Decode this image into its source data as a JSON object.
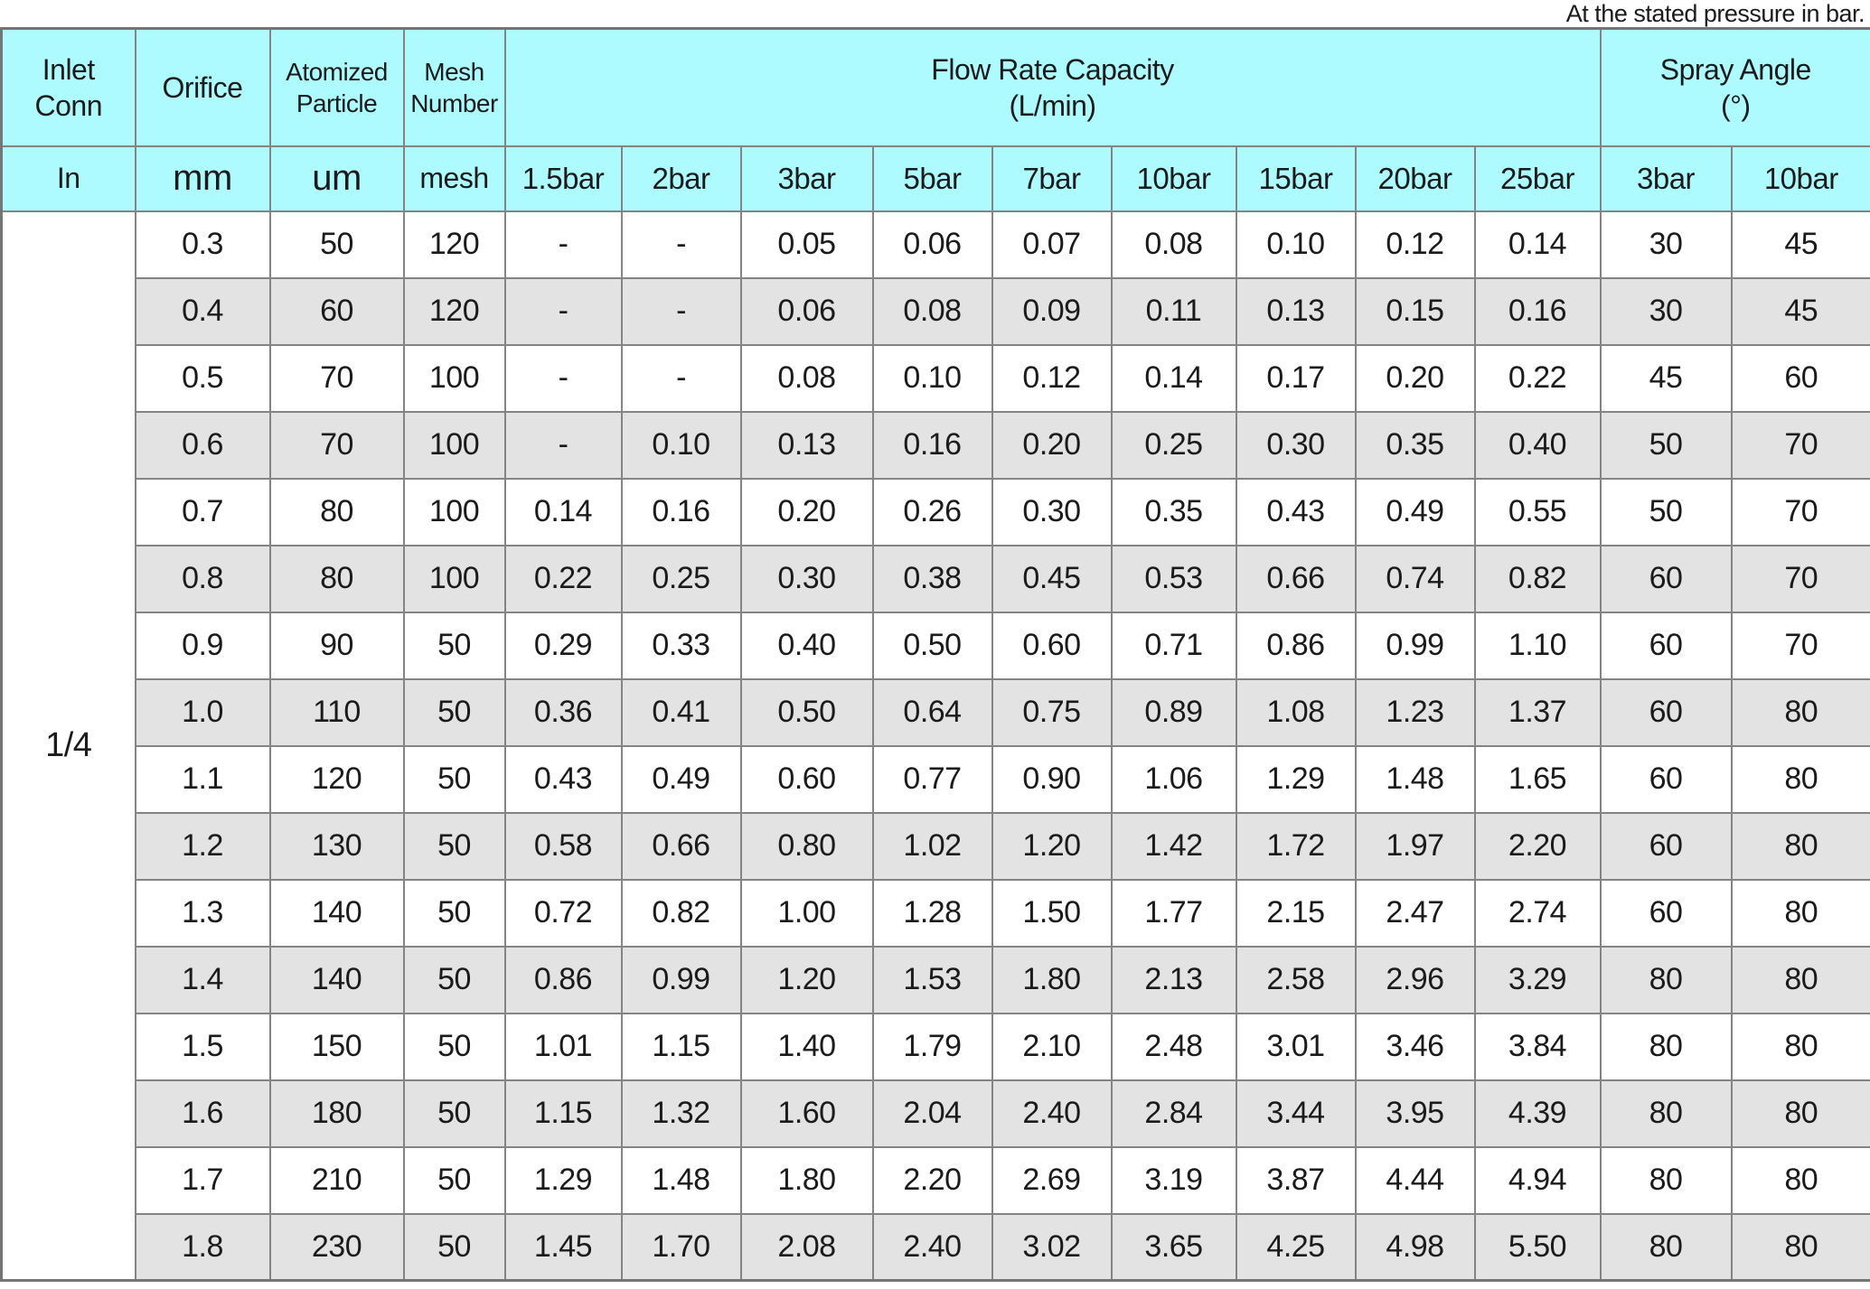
{
  "annotation": "At the stated pressure in bar.",
  "colors": {
    "header_bg": "#aefbff",
    "row_alt_bg": "#e3e3e3",
    "row_bg": "#ffffff",
    "border": "#848484",
    "text": "#1b1b1b"
  },
  "table": {
    "header_groups": {
      "inlet_conn": "Inlet\nConn",
      "orifice": "Orifice",
      "atomized_particle": "Atomized\nParticle",
      "mesh_number": "Mesh\nNumber",
      "flow_rate": "Flow Rate Capacity\n(L/min)",
      "spray_angle": "Spray Angle\n(°)"
    },
    "units": [
      "In",
      "mm",
      "um",
      "mesh",
      "1.5bar",
      "2bar",
      "3bar",
      "5bar",
      "7bar",
      "10bar",
      "15bar",
      "20bar",
      "25bar",
      "3bar",
      "10bar"
    ],
    "inlet_conn_value": "1/4",
    "rows": [
      {
        "orifice": "0.3",
        "particle": "50",
        "mesh": "120",
        "flow": [
          "-",
          "-",
          "0.05",
          "0.06",
          "0.07",
          "0.08",
          "0.10",
          "0.12",
          "0.14"
        ],
        "spray": [
          "30",
          "45"
        ]
      },
      {
        "orifice": "0.4",
        "particle": "60",
        "mesh": "120",
        "flow": [
          "-",
          "-",
          "0.06",
          "0.08",
          "0.09",
          "0.11",
          "0.13",
          "0.15",
          "0.16"
        ],
        "spray": [
          "30",
          "45"
        ]
      },
      {
        "orifice": "0.5",
        "particle": "70",
        "mesh": "100",
        "flow": [
          "-",
          "-",
          "0.08",
          "0.10",
          "0.12",
          "0.14",
          "0.17",
          "0.20",
          "0.22"
        ],
        "spray": [
          "45",
          "60"
        ]
      },
      {
        "orifice": "0.6",
        "particle": "70",
        "mesh": "100",
        "flow": [
          "-",
          "0.10",
          "0.13",
          "0.16",
          "0.20",
          "0.25",
          "0.30",
          "0.35",
          "0.40"
        ],
        "spray": [
          "50",
          "70"
        ]
      },
      {
        "orifice": "0.7",
        "particle": "80",
        "mesh": "100",
        "flow": [
          "0.14",
          "0.16",
          "0.20",
          "0.26",
          "0.30",
          "0.35",
          "0.43",
          "0.49",
          "0.55"
        ],
        "spray": [
          "50",
          "70"
        ]
      },
      {
        "orifice": "0.8",
        "particle": "80",
        "mesh": "100",
        "flow": [
          "0.22",
          "0.25",
          "0.30",
          "0.38",
          "0.45",
          "0.53",
          "0.66",
          "0.74",
          "0.82"
        ],
        "spray": [
          "60",
          "70"
        ]
      },
      {
        "orifice": "0.9",
        "particle": "90",
        "mesh": "50",
        "flow": [
          "0.29",
          "0.33",
          "0.40",
          "0.50",
          "0.60",
          "0.71",
          "0.86",
          "0.99",
          "1.10"
        ],
        "spray": [
          "60",
          "70"
        ]
      },
      {
        "orifice": "1.0",
        "particle": "110",
        "mesh": "50",
        "flow": [
          "0.36",
          "0.41",
          "0.50",
          "0.64",
          "0.75",
          "0.89",
          "1.08",
          "1.23",
          "1.37"
        ],
        "spray": [
          "60",
          "80"
        ]
      },
      {
        "orifice": "1.1",
        "particle": "120",
        "mesh": "50",
        "flow": [
          "0.43",
          "0.49",
          "0.60",
          "0.77",
          "0.90",
          "1.06",
          "1.29",
          "1.48",
          "1.65"
        ],
        "spray": [
          "60",
          "80"
        ]
      },
      {
        "orifice": "1.2",
        "particle": "130",
        "mesh": "50",
        "flow": [
          "0.58",
          "0.66",
          "0.80",
          "1.02",
          "1.20",
          "1.42",
          "1.72",
          "1.97",
          "2.20"
        ],
        "spray": [
          "60",
          "80"
        ]
      },
      {
        "orifice": "1.3",
        "particle": "140",
        "mesh": "50",
        "flow": [
          "0.72",
          "0.82",
          "1.00",
          "1.28",
          "1.50",
          "1.77",
          "2.15",
          "2.47",
          "2.74"
        ],
        "spray": [
          "60",
          "80"
        ]
      },
      {
        "orifice": "1.4",
        "particle": "140",
        "mesh": "50",
        "flow": [
          "0.86",
          "0.99",
          "1.20",
          "1.53",
          "1.80",
          "2.13",
          "2.58",
          "2.96",
          "3.29"
        ],
        "spray": [
          "80",
          "80"
        ]
      },
      {
        "orifice": "1.5",
        "particle": "150",
        "mesh": "50",
        "flow": [
          "1.01",
          "1.15",
          "1.40",
          "1.79",
          "2.10",
          "2.48",
          "3.01",
          "3.46",
          "3.84"
        ],
        "spray": [
          "80",
          "80"
        ]
      },
      {
        "orifice": "1.6",
        "particle": "180",
        "mesh": "50",
        "flow": [
          "1.15",
          "1.32",
          "1.60",
          "2.04",
          "2.40",
          "2.84",
          "3.44",
          "3.95",
          "4.39"
        ],
        "spray": [
          "80",
          "80"
        ]
      },
      {
        "orifice": "1.7",
        "particle": "210",
        "mesh": "50",
        "flow": [
          "1.29",
          "1.48",
          "1.80",
          "2.20",
          "2.69",
          "3.19",
          "3.87",
          "4.44",
          "4.94"
        ],
        "spray": [
          "80",
          "80"
        ]
      },
      {
        "orifice": "1.8",
        "particle": "230",
        "mesh": "50",
        "flow": [
          "1.45",
          "1.70",
          "2.08",
          "2.40",
          "3.02",
          "3.65",
          "4.25",
          "4.98",
          "5.50"
        ],
        "spray": [
          "80",
          "80"
        ]
      }
    ]
  }
}
